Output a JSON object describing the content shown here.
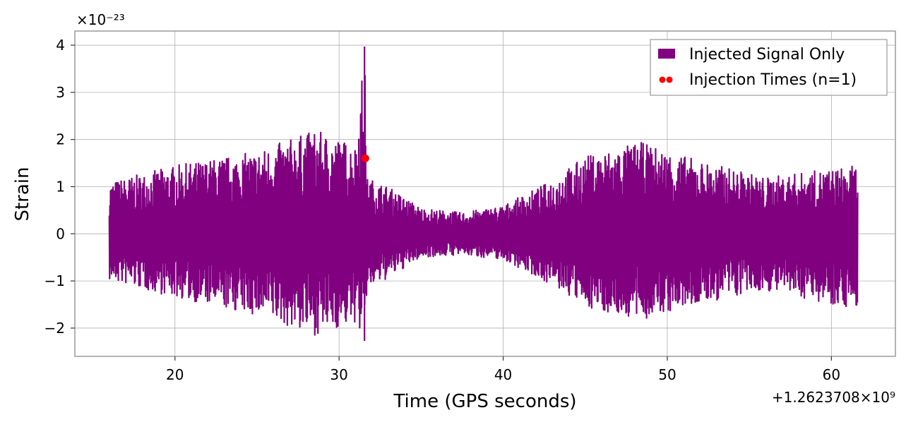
{
  "chart_data": {
    "type": "line",
    "title": "",
    "xlabel": "Time (GPS seconds)",
    "ylabel": "Strain",
    "x_offset_text": "+1.2623708×10⁹",
    "y_scale_text": "×10⁻²³",
    "xlim": [
      13.9,
      63.9
    ],
    "ylim": [
      -2.6,
      4.3
    ],
    "x_ticks": [
      20,
      30,
      40,
      50,
      60
    ],
    "x_tick_labels": [
      "20",
      "30",
      "40",
      "50",
      "60"
    ],
    "y_ticks": [
      -2,
      -1,
      0,
      1,
      2,
      3,
      4
    ],
    "y_tick_labels": [
      "−2",
      "−1",
      "0",
      "1",
      "2",
      "3",
      "4"
    ],
    "grid": true,
    "legend_position": "top-right",
    "series": [
      {
        "name": "Injected Signal Only",
        "kind": "line",
        "color": "#800080",
        "x_range": [
          16.0,
          61.6
        ],
        "envelope_knots": [
          {
            "x": 16.0,
            "max": 1.1,
            "min": -1.0
          },
          {
            "x": 20.0,
            "max": 1.45,
            "min": -1.35
          },
          {
            "x": 25.0,
            "max": 1.75,
            "min": -1.75
          },
          {
            "x": 28.5,
            "max": 2.2,
            "min": -2.15
          },
          {
            "x": 31.0,
            "max": 1.9,
            "min": -1.9
          },
          {
            "x": 31.55,
            "max": 3.97,
            "min": -2.27
          },
          {
            "x": 31.7,
            "max": 1.2,
            "min": -1.2
          },
          {
            "x": 33.0,
            "max": 1.0,
            "min": -0.95
          },
          {
            "x": 35.0,
            "max": 0.55,
            "min": -0.5
          },
          {
            "x": 37.5,
            "max": 0.45,
            "min": -0.45
          },
          {
            "x": 40.0,
            "max": 0.6,
            "min": -0.55
          },
          {
            "x": 42.5,
            "max": 1.05,
            "min": -1.0
          },
          {
            "x": 45.0,
            "max": 1.65,
            "min": -1.55
          },
          {
            "x": 48.3,
            "max": 1.95,
            "min": -1.85
          },
          {
            "x": 52.0,
            "max": 1.55,
            "min": -1.5
          },
          {
            "x": 56.0,
            "max": 1.2,
            "min": -1.2
          },
          {
            "x": 61.6,
            "max": 1.45,
            "min": -1.6
          }
        ]
      },
      {
        "name": "Injection Times (n=1)",
        "kind": "scatter",
        "color": "#ff0000",
        "points": [
          {
            "x": 31.6,
            "y": 1.6
          }
        ]
      }
    ]
  }
}
